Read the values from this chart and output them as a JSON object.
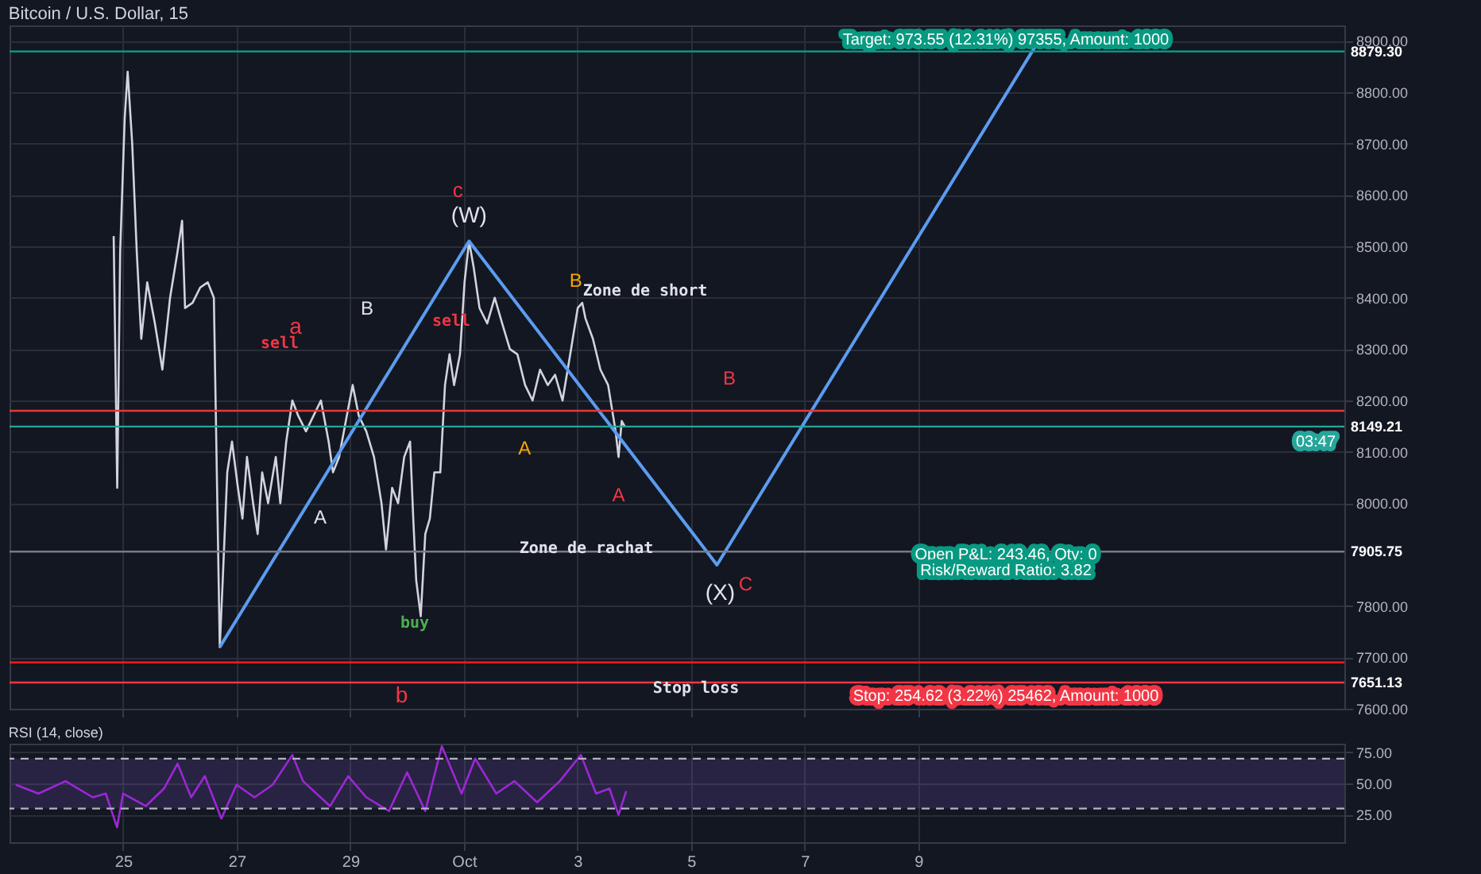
{
  "chart_data": [
    {
      "type": "line",
      "title": "Bitcoin / U.S. Dollar, 15",
      "xlim": [
        "--09-23",
        "--10-16T12:00"
      ],
      "ylim": [
        7600,
        8930
      ],
      "xticks": [
        {
          "value": "--09-25",
          "label": null
        },
        {
          "value": "--09-27",
          "label": null
        },
        {
          "value": "--09-29",
          "label": null
        },
        {
          "value": "--10-01",
          "label": null
        },
        {
          "value": "--10-03",
          "label": null
        },
        {
          "value": "--10-05",
          "label": null
        },
        {
          "value": "--10-07",
          "label": null
        },
        {
          "value": "--10-09",
          "label": null
        }
      ],
      "yticks": [
        {
          "value": 7600,
          "label": "7600.00"
        },
        {
          "value": 7700,
          "label": "7700.00"
        },
        {
          "value": 7800,
          "label": "7800.00"
        },
        {
          "value": 8000,
          "label": "8000.00"
        },
        {
          "value": 8100,
          "label": "8100.00"
        },
        {
          "value": 8200,
          "label": "8200.00"
        },
        {
          "value": 8300,
          "label": "8300.00"
        },
        {
          "value": 8400,
          "label": "8400.00"
        },
        {
          "value": 8500,
          "label": "8500.00"
        },
        {
          "value": 8600,
          "label": "8600.00"
        },
        {
          "value": 8700,
          "label": "8700.00"
        },
        {
          "value": 8800,
          "label": "8800.00"
        },
        {
          "value": 8900,
          "label": "8900.00"
        }
      ],
      "grid": true,
      "tick_labels": "y",
      "marker": "none",
      "series": [
        {
          "color": "#d1d4dc",
          "x": [
            "--09-24T20:00",
            "--09-24T21:30",
            "--09-24T22:45",
            "--09-25T00:40",
            "--09-25T01:55",
            "--09-25T03:50",
            "--09-25T05:45",
            "--09-25T07:40",
            "--09-25T10:10",
            "--09-25T13:25",
            "--09-25T16:35",
            "--09-25T19:50",
            "--09-25T23:00",
            "--09-26T00:55",
            "--09-26T02:10",
            "--09-26T05:20",
            "--09-26T08:35",
            "--09-26T11:45",
            "--09-26T14:20",
            "--09-26T15:35",
            "--09-26T16:50",
            "--09-26T18:05",
            "--09-26T20:00",
            "--09-26T22:00",
            "--09-27T00:30",
            "--09-27T02:25",
            "--09-27T04:20",
            "--09-27T06:55",
            "--09-27T08:50",
            "--09-27T10:45",
            "--09-27T13:15",
            "--09-27T16:30",
            "--09-27T18:25",
            "--09-27T20:55",
            "--09-27T23:30",
            "--09-28T02:00",
            "--09-28T05:15",
            "--09-28T08:25",
            "--09-28T11:35",
            "--09-28T14:50",
            "--09-28T16:40",
            "--09-28T19:15",
            "--09-28T22:30",
            "--09-29T01:00",
            "--09-29T03:35",
            "--09-29T06:45",
            "--09-29T10:00",
            "--09-29T13:10",
            "--09-29T15:05",
            "--09-29T17:40",
            "--09-29T20:10",
            "--09-29T22:45",
            "--09-30T01:15",
            "--09-30T02:35",
            "--09-30T03:50",
            "--09-30T05:45",
            "--09-30T07:40",
            "--09-30T09:35",
            "--09-30T11:30",
            "--09-30T14:00",
            "--09-30T16:00",
            "--09-30T17:55",
            "--09-30T19:50",
            "--09-30T22:20",
            "--10-01T00:15",
            "--10-01T02:10",
            "--10-01T04:05",
            "--10-01T06:35",
            "--10-01T09:50",
            "--10-01T13:00",
            "--10-01T16:10",
            "--10-01T19:25",
            "--10-01T22:35",
            "--10-02T01:50",
            "--10-02T05:00",
            "--10-02T08:10",
            "--10-02T11:25",
            "--10-02T14:30",
            "--10-02T17:40",
            "--10-02T20:55",
            "--10-03T00:05",
            "--10-03T02:00",
            "--10-03T03:20",
            "--10-03T06:30",
            "--10-03T09:40",
            "--10-03T12:55",
            "--10-03T16:05",
            "--10-03T17:20",
            "--10-03T18:40",
            "--10-03T19:55"
          ],
          "values": [
            8520,
            8030,
            8490,
            8750,
            8840,
            8700,
            8490,
            8320,
            8430,
            8350,
            8260,
            8400,
            8490,
            8550,
            8380,
            8390,
            8420,
            8430,
            8400,
            8060,
            7720,
            7850,
            8060,
            8120,
            8030,
            7970,
            8090,
            8000,
            7940,
            8060,
            8000,
            8090,
            8000,
            8120,
            8200,
            8170,
            8140,
            8170,
            8200,
            8120,
            8060,
            8090,
            8170,
            8230,
            8170,
            8140,
            8090,
            8000,
            7910,
            8030,
            8000,
            8090,
            8120,
            7970,
            7850,
            7780,
            7940,
            7970,
            8060,
            8060,
            8230,
            8290,
            8230,
            8290,
            8430,
            8510,
            8460,
            8380,
            8350,
            8400,
            8350,
            8300,
            8290,
            8230,
            8200,
            8260,
            8230,
            8250,
            8200,
            8290,
            8380,
            8390,
            8360,
            8320,
            8260,
            8230,
            8140,
            8090,
            8160,
            8150
          ]
        },
        {
          "color": "#5b9cf0",
          "x": [
            "--09-26T16:50",
            "--10-01T02:10",
            "--10-05T10:55",
            "--10-11T02:50"
          ],
          "values": [
            7720,
            8510,
            7880,
            8900
          ]
        }
      ],
      "ref_lines": [
        {
          "axis": "y",
          "value": 7690,
          "color": "#ff1a1a"
        },
        {
          "axis": "y",
          "value": 8180,
          "color": "#e53935"
        },
        {
          "axis": "y",
          "value": 8149.21,
          "label": "8149.21",
          "color": "#26a69a"
        },
        {
          "axis": "y",
          "value": 8879.3,
          "label": "8879.30",
          "color": "#089981"
        },
        {
          "axis": "y",
          "value": 7905.75,
          "label": "7905.75",
          "color": "#787b86"
        },
        {
          "axis": "y",
          "value": 7651.13,
          "label": "7651.13",
          "color": "#f23645"
        }
      ],
      "annotations": [
        "Zone de short",
        "Zone de rachat",
        "Stop loss",
        "Target: 973.55 (12.31%) 97355, Amount: 1000",
        "Open P&L: 243.46, Qty: 0",
        "Risk/Reward Ratio: 3.82",
        "Stop: 254.62 (3.22%) 25462, Amount: 1000",
        "sell",
        "sell",
        "buy",
        {
          "text": "(W)",
          "x": "--10-01T02:10",
          "y": 8510
        },
        {
          "text": "c",
          "x": "--10-01T02:10",
          "y": 8510
        },
        {
          "text": "(X)",
          "x": "--10-05T10:55",
          "y": 7880
        },
        {
          "text": "C",
          "x": "--10-05T10:55",
          "y": 7880
        },
        {
          "text": "a",
          "x": "--09-27T23:30",
          "y": 8200
        },
        {
          "text": "b",
          "x": "--09-30T05:45",
          "y": 7780
        },
        "B",
        {
          "text": "A",
          "x": "--09-28T16:40",
          "y": 8060
        },
        {
          "text": "B",
          "x": "--10-03T02:00",
          "y": 8390
        },
        {
          "text": "A",
          "x": "--10-02T05:00",
          "y": 8200
        },
        {
          "text": "A",
          "x": "--10-03T17:20",
          "y": 8090
        },
        "B",
        "03:47"
      ]
    },
    {
      "type": "line",
      "title": "RSI (14, close)",
      "xlim": [
        "--09-23",
        "--10-16T12:00"
      ],
      "ylim": [
        3,
        82
      ],
      "xticks": [
        {
          "value": "--09-25",
          "label": "25"
        },
        {
          "value": "--09-27",
          "label": "27"
        },
        {
          "value": "--09-29",
          "label": "29"
        },
        {
          "value": "--10-01",
          "label": "Oct"
        },
        {
          "value": "--10-03",
          "label": "3"
        },
        {
          "value": "--10-05",
          "label": "5"
        },
        {
          "value": "--10-07",
          "label": "7"
        },
        {
          "value": "--10-09",
          "label": "9"
        }
      ],
      "yticks": [
        {
          "value": 25,
          "label": "25.00"
        },
        {
          "value": 50,
          "label": "50.00"
        },
        {
          "value": 75,
          "label": "75.00"
        }
      ],
      "grid": true,
      "marker": "none",
      "series": [
        {
          "color": "#9c27d6",
          "x": [
            "--09-23T02:40",
            "--09-23T12:15",
            "--09-23T23:40",
            "--09-24T11:10",
            "--09-24T16:40",
            "--09-24T21:25",
            "--09-25T00:00",
            "--09-25T09:35",
            "--09-25T17:15",
            "--09-25T23:00",
            "--09-26T04:45",
            "--09-26T10:30",
            "--09-26T17:30",
            "--09-26T23:55",
            "--09-27T07:30",
            "--09-27T15:10",
            "--09-27T23:30",
            "--09-28T04:00",
            "--09-28T15:25",
            "--09-28T23:05",
            "--09-29T06:45",
            "--09-29T16:20",
            "--09-30T00:00",
            "--09-30T07:40",
            "--09-30T14:40",
            "--09-30T23:00",
            "--10-01T04:45",
            "--10-01T13:40",
            "--10-01T21:20",
            "--10-02T06:55",
            "--10-02T16:30",
            "--10-03T01:25",
            "--10-03T07:50",
            "--10-03T13:30",
            "--10-03T17:20",
            "--10-03T20:35"
          ],
          "values": [
            49,
            42,
            52,
            39,
            42,
            15,
            42,
            32,
            46,
            66,
            39,
            56,
            22,
            49,
            39,
            49,
            73,
            52,
            32,
            56,
            39,
            28,
            59,
            28,
            80,
            42,
            70,
            42,
            52,
            35,
            52,
            73,
            42,
            46,
            25,
            44
          ]
        }
      ],
      "bands": [
        {
          "axis": "y",
          "from": 30,
          "to": 70,
          "color": "#7e57c2"
        }
      ],
      "ref_lines": [
        {
          "axis": "y",
          "value": 70,
          "color": "#b2b5be",
          "line_style": "dashed"
        },
        {
          "axis": "y",
          "value": 30,
          "color": "#b2b5be",
          "line_style": "dashed"
        }
      ]
    }
  ]
}
